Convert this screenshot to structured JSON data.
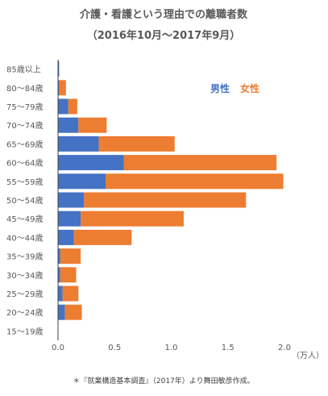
{
  "chart_data": {
    "type": "bar",
    "orientation": "horizontal",
    "stacked": true,
    "title": "介護・看護という理由での離職者数",
    "subtitle": "（2016年10月〜2017年9月）",
    "xunit": "（万人）",
    "xlim": [
      0,
      2.0
    ],
    "xticks": [
      "0.0",
      "0.5",
      "1.0",
      "1.5",
      "2.0"
    ],
    "xtick_values": [
      0,
      0.5,
      1.0,
      1.5,
      2.0
    ],
    "categories": [
      "85歳以上",
      "80〜84歳",
      "75〜79歳",
      "70〜74歳",
      "65〜69歳",
      "60〜64歳",
      "55〜59歳",
      "50〜54歳",
      "45〜49歳",
      "40〜44歳",
      "35〜39歳",
      "30〜34歳",
      "25〜29歳",
      "20〜24歳",
      "15〜19歳"
    ],
    "series": [
      {
        "name": "男性",
        "color": "#4472C4",
        "values": [
          0.01,
          0.01,
          0.09,
          0.18,
          0.36,
          0.58,
          0.42,
          0.23,
          0.2,
          0.14,
          0.02,
          0.02,
          0.04,
          0.06,
          0.0
        ]
      },
      {
        "name": "女性",
        "color": "#ED7D31",
        "values": [
          0.0,
          0.06,
          0.08,
          0.25,
          0.67,
          1.35,
          1.57,
          1.43,
          0.91,
          0.51,
          0.18,
          0.14,
          0.14,
          0.15,
          0.0
        ]
      }
    ],
    "legend_position": "top-right",
    "grid": false
  },
  "footnote": "＊『就業構造基本調査』（2017年）より舞田敏彦作成。"
}
